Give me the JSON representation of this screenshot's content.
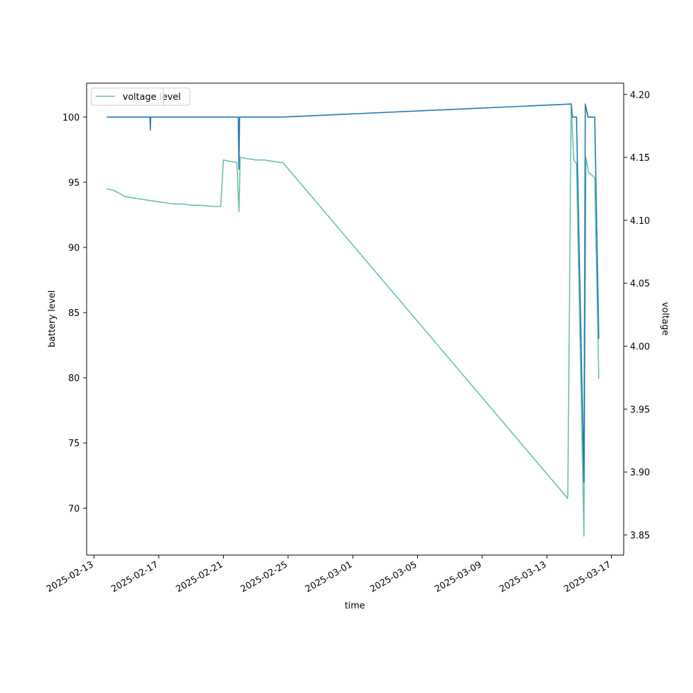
{
  "chart_data": {
    "type": "line",
    "xlabel": "time",
    "ylabel": "battery level",
    "ylabel_right": "voltage",
    "xlim": [
      "2025-02-12T13:00",
      "2025-03-17T18:00"
    ],
    "ylim": [
      66.4,
      102.6
    ],
    "ylim_right": [
      3.834,
      4.209
    ],
    "x_ticks": [
      "2025-02-13",
      "2025-02-17",
      "2025-02-21",
      "2025-02-25",
      "2025-03-01",
      "2025-03-05",
      "2025-03-09",
      "2025-03-13",
      "2025-03-17"
    ],
    "y_ticks": [
      70,
      75,
      80,
      85,
      90,
      95,
      100
    ],
    "y_ticks_right": [
      3.85,
      3.9,
      3.95,
      4.0,
      4.05,
      4.1,
      4.15,
      4.2
    ],
    "grid": false,
    "legend_position": "upper-left",
    "series": [
      {
        "name": "level",
        "axis": "left",
        "color": "#1f77b4",
        "points": [
          [
            "2025-02-13T19:00",
            100
          ],
          [
            "2025-02-16T11:00",
            100
          ],
          [
            "2025-02-16T11:30",
            99
          ],
          [
            "2025-02-16T12:00",
            100
          ],
          [
            "2025-02-21T22:00",
            100
          ],
          [
            "2025-02-21T23:00",
            96
          ],
          [
            "2025-02-22T00:00",
            100
          ],
          [
            "2025-02-24T16:00",
            100
          ],
          [
            "2025-03-14T12:00",
            101
          ],
          [
            "2025-03-14T14:00",
            100
          ],
          [
            "2025-03-14T20:00",
            100
          ],
          [
            "2025-03-15T07:00",
            72
          ],
          [
            "2025-03-15T09:00",
            101
          ],
          [
            "2025-03-15T13:00",
            100
          ],
          [
            "2025-03-15T23:00",
            100
          ],
          [
            "2025-03-16T05:00",
            83
          ]
        ]
      },
      {
        "name": "voltage",
        "axis": "right",
        "color": "#66c2a5",
        "points": [
          [
            "2025-02-13T19:00",
            4.125
          ],
          [
            "2025-02-14T04:00",
            4.124
          ],
          [
            "2025-02-14T12:00",
            4.122
          ],
          [
            "2025-02-14T21:00",
            4.119
          ],
          [
            "2025-02-15T08:00",
            4.118
          ],
          [
            "2025-02-15T20:00",
            4.117
          ],
          [
            "2025-02-16T08:00",
            4.116
          ],
          [
            "2025-02-16T20:00",
            4.115
          ],
          [
            "2025-02-17T10:00",
            4.114
          ],
          [
            "2025-02-17T22:00",
            4.113
          ],
          [
            "2025-02-18T12:00",
            4.113
          ],
          [
            "2025-02-19T00:00",
            4.112
          ],
          [
            "2025-02-19T12:00",
            4.112
          ],
          [
            "2025-02-20T12:00",
            4.111
          ],
          [
            "2025-02-20T20:00",
            4.111
          ],
          [
            "2025-02-21T00:00",
            4.148
          ],
          [
            "2025-02-21T08:00",
            4.147
          ],
          [
            "2025-02-21T20:00",
            4.146
          ],
          [
            "2025-02-21T23:00",
            4.107
          ],
          [
            "2025-02-22T01:00",
            4.15
          ],
          [
            "2025-02-22T12:00",
            4.149
          ],
          [
            "2025-02-23T00:00",
            4.148
          ],
          [
            "2025-02-23T12:00",
            4.148
          ],
          [
            "2025-02-24T00:00",
            4.147
          ],
          [
            "2025-02-24T12:00",
            4.146
          ],
          [
            "2025-02-24T16:00",
            4.146
          ],
          [
            "2025-03-14T07:00",
            3.879
          ],
          [
            "2025-03-14T12:00",
            4.192
          ],
          [
            "2025-03-14T16:00",
            4.148
          ],
          [
            "2025-03-14T20:00",
            4.145
          ],
          [
            "2025-03-15T05:00",
            3.905
          ],
          [
            "2025-03-15T07:00",
            3.849
          ],
          [
            "2025-03-15T10:00",
            4.15
          ],
          [
            "2025-03-15T14:00",
            4.138
          ],
          [
            "2025-03-15T23:00",
            4.134
          ],
          [
            "2025-03-16T05:00",
            3.974
          ]
        ]
      }
    ]
  }
}
